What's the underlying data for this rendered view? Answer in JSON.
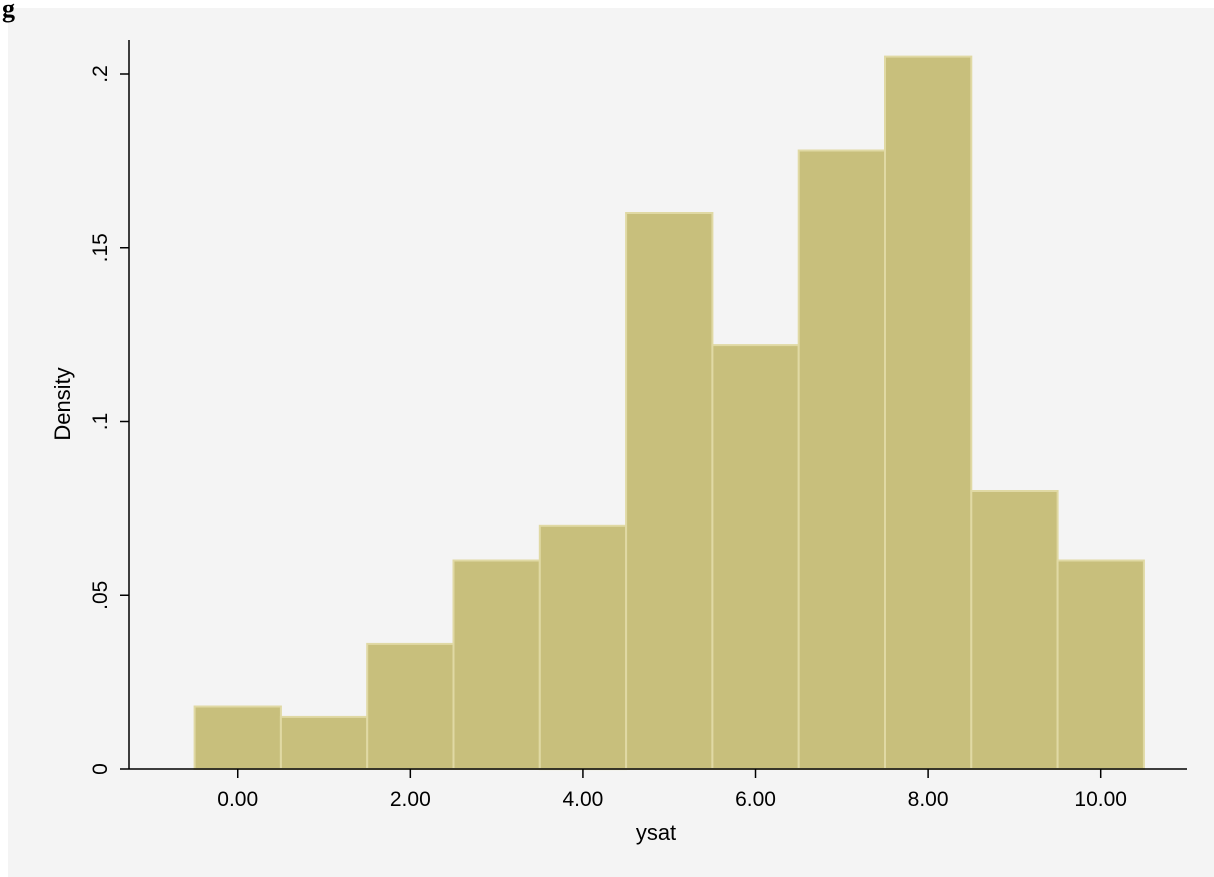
{
  "header": {
    "corner_text": "g"
  },
  "colors": {
    "figure_background": "#f4f4f4",
    "plot_background": "#f4f4f4",
    "bar_fill": "#c8bf7c",
    "bar_edge": "#e0d9a4",
    "axis_line": "#000000"
  },
  "chart_data": {
    "type": "bar",
    "subtype": "histogram",
    "xlabel": "ysat",
    "ylabel": "Density",
    "bins": [
      {
        "start": -0.5,
        "end": 0.5,
        "density": 0.018
      },
      {
        "start": 0.5,
        "end": 1.5,
        "density": 0.015
      },
      {
        "start": 1.5,
        "end": 2.5,
        "density": 0.036
      },
      {
        "start": 2.5,
        "end": 3.5,
        "density": 0.06
      },
      {
        "start": 3.5,
        "end": 4.5,
        "density": 0.07
      },
      {
        "start": 4.5,
        "end": 5.5,
        "density": 0.16
      },
      {
        "start": 5.5,
        "end": 6.5,
        "density": 0.122
      },
      {
        "start": 6.5,
        "end": 7.5,
        "density": 0.178
      },
      {
        "start": 7.5,
        "end": 8.5,
        "density": 0.205
      },
      {
        "start": 8.5,
        "end": 9.5,
        "density": 0.08
      },
      {
        "start": 9.5,
        "end": 10.5,
        "density": 0.06
      }
    ],
    "xlim": [
      -1.26,
      11.0
    ],
    "ylim": [
      0,
      0.21
    ],
    "x_ticks": [
      {
        "value": 0,
        "label": "0.00"
      },
      {
        "value": 2,
        "label": "2.00"
      },
      {
        "value": 4,
        "label": "4.00"
      },
      {
        "value": 6,
        "label": "6.00"
      },
      {
        "value": 8,
        "label": "8.00"
      },
      {
        "value": 10,
        "label": "10.00"
      }
    ],
    "y_ticks": [
      {
        "value": 0,
        "label": "0"
      },
      {
        "value": 0.05,
        "label": ".05"
      },
      {
        "value": 0.1,
        "label": ".1"
      },
      {
        "value": 0.15,
        "label": ".15"
      },
      {
        "value": 0.2,
        "label": ".2"
      }
    ],
    "grid": false,
    "legend": "none"
  }
}
